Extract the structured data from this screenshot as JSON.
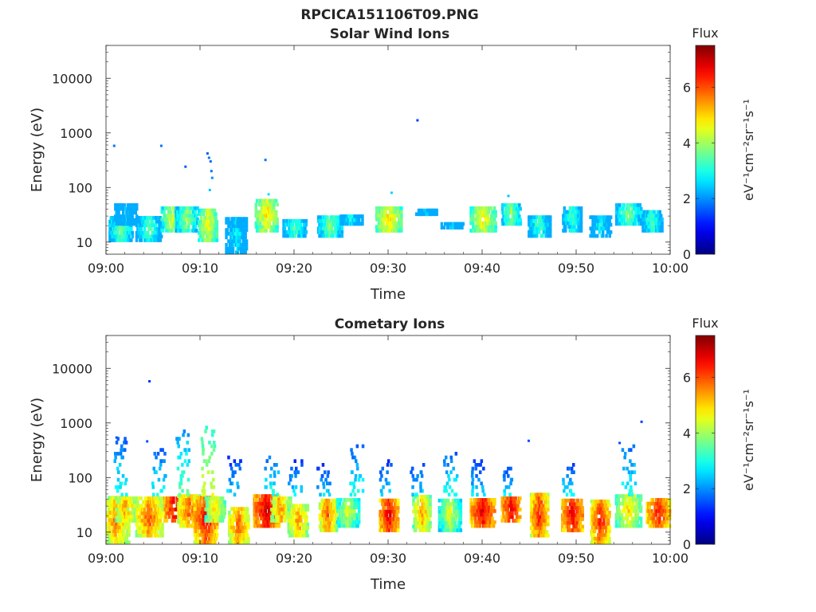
{
  "figure_title": "RPCICA151106T09.PNG",
  "colorbar": {
    "label": "Flux",
    "units": "eV⁻¹cm⁻²sr⁻¹s⁻¹",
    "range": [
      0,
      7.5
    ],
    "ticks": [
      0,
      2,
      4,
      6
    ],
    "colormap": "jet"
  },
  "chart_data": [
    {
      "type": "heatmap",
      "title": "Solar Wind Ions",
      "xlabel": "Time",
      "ylabel": "Energy (eV)",
      "y_scale": "log",
      "xlim": [
        "09:00",
        "10:00"
      ],
      "ylim": [
        6,
        40000
      ],
      "x_ticks": [
        "09:00",
        "09:10",
        "09:20",
        "09:30",
        "09:40",
        "09:50",
        "10:00"
      ],
      "y_ticks": [
        10,
        100,
        1000,
        10000
      ],
      "y_tick_labels": [
        "10",
        "100",
        "1000",
        "10000"
      ],
      "bursts": [
        {
          "t": "09:01:30",
          "e": [
            10,
            30
          ],
          "peak": 3.8
        },
        {
          "t": "09:02:00",
          "e": [
            20,
            45
          ],
          "peak": 2.5
        },
        {
          "t": "09:04:30",
          "e": [
            10,
            28
          ],
          "peak": 3.5
        },
        {
          "t": "09:07:00",
          "e": [
            15,
            45
          ],
          "peak": 4.5
        },
        {
          "t": "09:08:30",
          "e": [
            15,
            40
          ],
          "peak": 4.0
        },
        {
          "t": "09:10:45",
          "e": [
            10,
            40
          ],
          "peak": 4.8
        },
        {
          "t": "09:13:45",
          "e": [
            6,
            25
          ],
          "peak": 3.0
        },
        {
          "t": "09:17:00",
          "e": [
            15,
            60
          ],
          "peak": 5.0
        },
        {
          "t": "09:20:00",
          "e": [
            12,
            25
          ],
          "peak": 3.5
        },
        {
          "t": "09:23:45",
          "e": [
            12,
            30
          ],
          "peak": 3.8
        },
        {
          "t": "09:26:00",
          "e": [
            20,
            30
          ],
          "peak": 3.0
        },
        {
          "t": "09:30:00",
          "e": [
            15,
            40
          ],
          "peak": 5.0
        },
        {
          "t": "09:34:00",
          "e": [
            30,
            40
          ],
          "peak": 2.5
        },
        {
          "t": "09:36:40",
          "e": [
            17,
            22
          ],
          "peak": 2.5
        },
        {
          "t": "09:40:00",
          "e": [
            15,
            40
          ],
          "peak": 4.8
        },
        {
          "t": "09:43:00",
          "e": [
            20,
            45
          ],
          "peak": 4.0
        },
        {
          "t": "09:46:00",
          "e": [
            12,
            30
          ],
          "peak": 3.5
        },
        {
          "t": "09:49:30",
          "e": [
            15,
            45
          ],
          "peak": 3.5
        },
        {
          "t": "09:52:30",
          "e": [
            12,
            30
          ],
          "peak": 3.0
        },
        {
          "t": "09:55:30",
          "e": [
            20,
            45
          ],
          "peak": 3.8
        },
        {
          "t": "09:58:00",
          "e": [
            15,
            35
          ],
          "peak": 3.5
        }
      ],
      "scatter": [
        {
          "t": "09:00:45",
          "e": 580,
          "v": 1.8
        },
        {
          "t": "09:05:45",
          "e": 580,
          "v": 1.8
        },
        {
          "t": "09:08:20",
          "e": 240,
          "v": 1.6
        },
        {
          "t": "09:10:40",
          "e": 420,
          "v": 1.6
        },
        {
          "t": "09:10:50",
          "e": 350,
          "v": 1.8
        },
        {
          "t": "09:11:00",
          "e": 300,
          "v": 1.7
        },
        {
          "t": "09:11:05",
          "e": 200,
          "v": 1.8
        },
        {
          "t": "09:11:10",
          "e": 150,
          "v": 2.0
        },
        {
          "t": "09:10:55",
          "e": 90,
          "v": 2.4
        },
        {
          "t": "09:16:50",
          "e": 320,
          "v": 1.8
        },
        {
          "t": "09:17:10",
          "e": 75,
          "v": 2.6
        },
        {
          "t": "09:30:15",
          "e": 80,
          "v": 2.5
        },
        {
          "t": "09:33:00",
          "e": 1700,
          "v": 1.4
        },
        {
          "t": "09:42:40",
          "e": 70,
          "v": 2.4
        }
      ]
    },
    {
      "type": "heatmap",
      "title": "Cometary Ions",
      "xlabel": "Time",
      "ylabel": "Energy (eV)",
      "y_scale": "log",
      "xlim": [
        "09:00",
        "10:00"
      ],
      "ylim": [
        6,
        40000
      ],
      "x_ticks": [
        "09:00",
        "09:10",
        "09:20",
        "09:30",
        "09:40",
        "09:50",
        "10:00"
      ],
      "y_ticks": [
        10,
        100,
        1000,
        10000
      ],
      "y_tick_labels": [
        "10",
        "100",
        "1000",
        "10000"
      ],
      "bursts": [
        {
          "t": "09:01:00",
          "e": [
            6,
            40
          ],
          "peak": 5.8
        },
        {
          "t": "09:02:00",
          "e": [
            15,
            45
          ],
          "peak": 5.5
        },
        {
          "t": "09:04:30",
          "e": [
            8,
            40
          ],
          "peak": 6.0
        },
        {
          "t": "09:07:15",
          "e": [
            15,
            45
          ],
          "peak": 6.8
        },
        {
          "t": "09:08:45",
          "e": [
            12,
            45
          ],
          "peak": 6.0
        },
        {
          "t": "09:10:30",
          "e": [
            6,
            45
          ],
          "peak": 6.8
        },
        {
          "t": "09:11:30",
          "e": [
            15,
            40
          ],
          "peak": 5.0
        },
        {
          "t": "09:14:00",
          "e": [
            6,
            25
          ],
          "peak": 6.0
        },
        {
          "t": "09:17:00",
          "e": [
            12,
            45
          ],
          "peak": 7.0
        },
        {
          "t": "09:18:30",
          "e": [
            15,
            40
          ],
          "peak": 5.5
        },
        {
          "t": "09:20:20",
          "e": [
            8,
            30
          ],
          "peak": 5.5
        },
        {
          "t": "09:23:30",
          "e": [
            10,
            40
          ],
          "peak": 6.0
        },
        {
          "t": "09:25:40",
          "e": [
            12,
            40
          ],
          "peak": 4.5
        },
        {
          "t": "09:30:00",
          "e": [
            10,
            40
          ],
          "peak": 6.8
        },
        {
          "t": "09:33:30",
          "e": [
            10,
            45
          ],
          "peak": 5.5
        },
        {
          "t": "09:36:30",
          "e": [
            10,
            40
          ],
          "peak": 4.5
        },
        {
          "t": "09:40:00",
          "e": [
            12,
            40
          ],
          "peak": 6.8
        },
        {
          "t": "09:43:00",
          "e": [
            15,
            45
          ],
          "peak": 6.8
        },
        {
          "t": "09:46:00",
          "e": [
            8,
            45
          ],
          "peak": 6.5
        },
        {
          "t": "09:49:30",
          "e": [
            10,
            40
          ],
          "peak": 6.8
        },
        {
          "t": "09:52:30",
          "e": [
            6,
            35
          ],
          "peak": 6.5
        },
        {
          "t": "09:55:30",
          "e": [
            12,
            45
          ],
          "peak": 5.0
        },
        {
          "t": "09:58:40",
          "e": [
            12,
            40
          ],
          "peak": 6.5
        }
      ],
      "plumes": [
        {
          "t": "09:01:30",
          "e": [
            45,
            500
          ],
          "peak": 3.0
        },
        {
          "t": "09:05:30",
          "e": [
            45,
            300
          ],
          "peak": 3.0
        },
        {
          "t": "09:08:00",
          "e": [
            45,
            700
          ],
          "peak": 3.5
        },
        {
          "t": "09:10:45",
          "e": [
            45,
            800
          ],
          "peak": 4.5
        },
        {
          "t": "09:13:30",
          "e": [
            45,
            220
          ],
          "peak": 2.6
        },
        {
          "t": "09:17:30",
          "e": [
            45,
            250
          ],
          "peak": 3.0
        },
        {
          "t": "09:20:00",
          "e": [
            45,
            200
          ],
          "peak": 2.6
        },
        {
          "t": "09:23:00",
          "e": [
            45,
            180
          ],
          "peak": 2.5
        },
        {
          "t": "09:26:30",
          "e": [
            45,
            350
          ],
          "peak": 3.0
        },
        {
          "t": "09:29:30",
          "e": [
            45,
            200
          ],
          "peak": 2.6
        },
        {
          "t": "09:33:00",
          "e": [
            45,
            180
          ],
          "peak": 2.6
        },
        {
          "t": "09:36:30",
          "e": [
            45,
            280
          ],
          "peak": 3.0
        },
        {
          "t": "09:39:30",
          "e": [
            45,
            200
          ],
          "peak": 2.6
        },
        {
          "t": "09:42:30",
          "e": [
            45,
            150
          ],
          "peak": 2.8
        },
        {
          "t": "09:49:00",
          "e": [
            45,
            160
          ],
          "peak": 2.8
        },
        {
          "t": "09:55:30",
          "e": [
            45,
            400
          ],
          "peak": 3.0
        }
      ],
      "scatter": [
        {
          "t": "09:04:30",
          "e": 5800,
          "v": 1.3
        },
        {
          "t": "09:01:00",
          "e": 540,
          "v": 1.5
        },
        {
          "t": "09:04:15",
          "e": 460,
          "v": 1.5
        },
        {
          "t": "09:44:50",
          "e": 470,
          "v": 1.5
        },
        {
          "t": "09:56:50",
          "e": 1050,
          "v": 1.4
        },
        {
          "t": "09:54:30",
          "e": 430,
          "v": 1.5
        }
      ]
    }
  ]
}
